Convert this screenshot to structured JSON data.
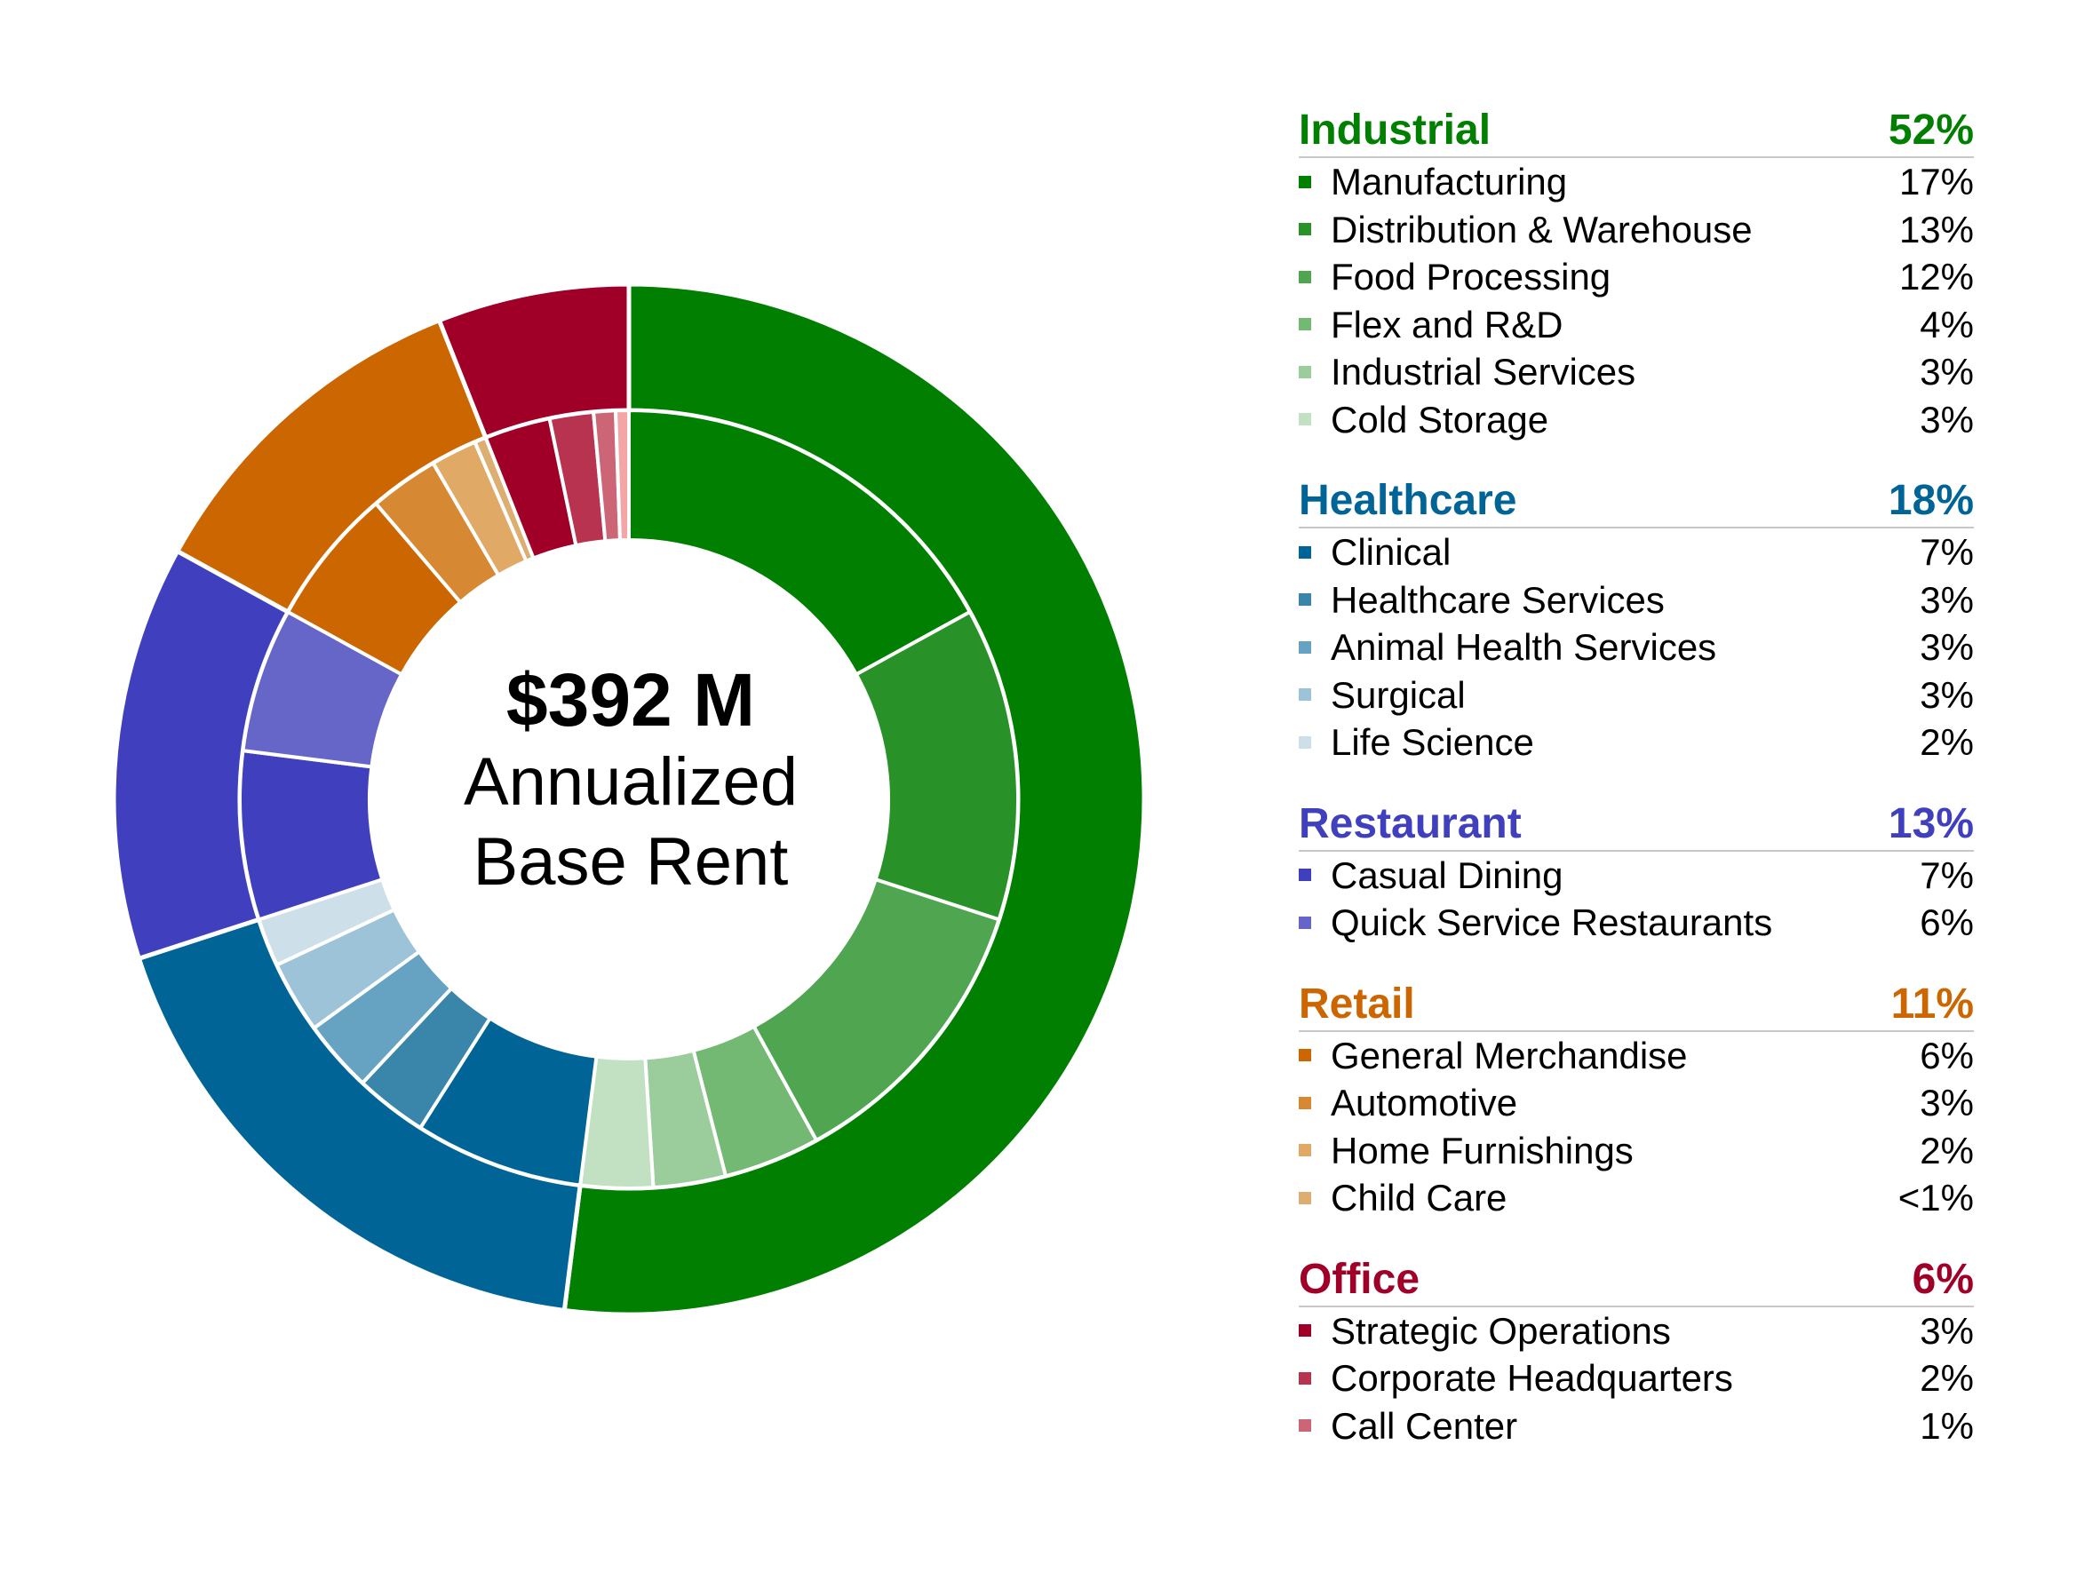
{
  "chart_data": {
    "type": "pie",
    "subtype": "nested-donut",
    "center_label": {
      "total": "$392 M",
      "line1": "Annualized",
      "line2": "Base Rent"
    },
    "groups": [
      {
        "name": "Industrial",
        "percent": "52%",
        "value": 52,
        "color": "#007f00",
        "items": [
          {
            "name": "Manufacturing",
            "percent": "17%",
            "value": 17,
            "color": "#007f00"
          },
          {
            "name": "Distribution & Warehouse",
            "percent": "13%",
            "value": 13,
            "color": "#289228"
          },
          {
            "name": "Food Processing",
            "percent": "12%",
            "value": 12,
            "color": "#50a650"
          },
          {
            "name": "Flex and R&D",
            "percent": "4%",
            "value": 4,
            "color": "#73b873"
          },
          {
            "name": "Industrial Services",
            "percent": "3%",
            "value": 3,
            "color": "#9bcc9b"
          },
          {
            "name": "Cold Storage",
            "percent": "3%",
            "value": 3,
            "color": "#c2e0c2"
          }
        ]
      },
      {
        "name": "Healthcare",
        "percent": "18%",
        "value": 18,
        "color": "#006496",
        "items": [
          {
            "name": "Clinical",
            "percent": "7%",
            "value": 7,
            "color": "#006496"
          },
          {
            "name": "Healthcare Services",
            "percent": "3%",
            "value": 3,
            "color": "#3a86ab"
          },
          {
            "name": "Animal Health Services",
            "percent": "3%",
            "value": 3,
            "color": "#66a3c2"
          },
          {
            "name": "Surgical",
            "percent": "3%",
            "value": 3,
            "color": "#9cc3d8"
          },
          {
            "name": "Life Science",
            "percent": "2%",
            "value": 2,
            "color": "#cde0ea"
          }
        ]
      },
      {
        "name": "Restaurant",
        "percent": "13%",
        "value": 13,
        "color": "#4040bf",
        "items": [
          {
            "name": "Casual Dining",
            "percent": "7%",
            "value": 7,
            "color": "#4040bf"
          },
          {
            "name": "Quick Service Restaurants",
            "percent": "6%",
            "value": 6,
            "color": "#6666c8"
          }
        ]
      },
      {
        "name": "Retail",
        "percent": "11%",
        "value": 11,
        "color": "#cc6600",
        "items": [
          {
            "name": "General Merchandise",
            "percent": "6%",
            "value": 6,
            "color": "#cc6600"
          },
          {
            "name": "Automotive",
            "percent": "3%",
            "value": 3,
            "color": "#d68833"
          },
          {
            "name": "Home Furnishings",
            "percent": "2%",
            "value": 2,
            "color": "#e0aa66"
          },
          {
            "name": "Child Care",
            "percent": "<1%",
            "value": 0.5,
            "color": "#dcae72"
          }
        ]
      },
      {
        "name": "Office",
        "percent": "6%",
        "value": 6,
        "color": "#a00028",
        "items": [
          {
            "name": "Strategic Operations",
            "percent": "3%",
            "value": 3,
            "color": "#a00028"
          },
          {
            "name": "Corporate Headquarters",
            "percent": "2%",
            "value": 2,
            "color": "#b83350"
          },
          {
            "name": "Call Center",
            "percent": "1%",
            "value": 1,
            "color": "#cc6676"
          },
          {
            "name": "",
            "percent": "",
            "value": 0.6,
            "color": "#f4a6a6"
          }
        ]
      }
    ]
  }
}
